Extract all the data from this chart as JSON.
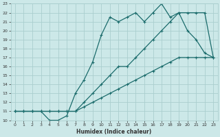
{
  "xlabel": "Humidex (Indice chaleur)",
  "bg_color": "#cce8e8",
  "grid_color": "#aacece",
  "line_color": "#1a6b6b",
  "xlim": [
    -0.5,
    23.5
  ],
  "ylim": [
    10,
    23
  ],
  "xticks": [
    0,
    1,
    2,
    3,
    4,
    5,
    6,
    7,
    8,
    9,
    10,
    11,
    12,
    13,
    14,
    15,
    16,
    17,
    18,
    19,
    20,
    21,
    22,
    23
  ],
  "yticks": [
    10,
    11,
    12,
    13,
    14,
    15,
    16,
    17,
    18,
    19,
    20,
    21,
    22,
    23
  ],
  "line1_x": [
    0,
    1,
    2,
    3,
    4,
    5,
    6,
    7,
    8,
    9,
    10,
    11,
    12,
    13,
    14,
    15,
    16,
    17,
    18,
    19,
    20,
    21,
    22,
    23
  ],
  "line1_y": [
    11,
    11,
    11,
    11,
    11,
    11,
    11,
    11,
    12,
    13,
    14,
    15,
    16,
    16,
    17,
    18,
    19,
    20,
    21,
    22,
    22,
    22,
    22,
    17
  ],
  "line2_x": [
    0,
    1,
    2,
    3,
    4,
    5,
    6,
    7,
    8,
    9,
    10,
    11,
    12,
    13,
    14,
    15,
    16,
    17,
    18,
    19,
    20,
    21,
    22,
    23
  ],
  "line2_y": [
    11,
    11,
    11,
    11,
    10,
    10,
    10.5,
    13,
    14.5,
    16.5,
    19.5,
    21.5,
    21,
    21.5,
    22,
    21,
    22,
    23,
    21.5,
    22,
    20,
    19,
    17.5,
    17
  ],
  "line3_x": [
    0,
    1,
    2,
    3,
    4,
    5,
    6,
    7,
    8,
    9,
    10,
    11,
    12,
    13,
    14,
    15,
    16,
    17,
    18,
    19,
    20,
    21,
    22,
    23
  ],
  "line3_y": [
    11,
    11,
    11,
    11,
    11,
    11,
    11,
    11,
    11.5,
    12,
    12.5,
    13,
    13.5,
    14,
    14.5,
    15,
    15.5,
    16,
    16.5,
    17,
    17,
    17,
    17,
    17
  ]
}
